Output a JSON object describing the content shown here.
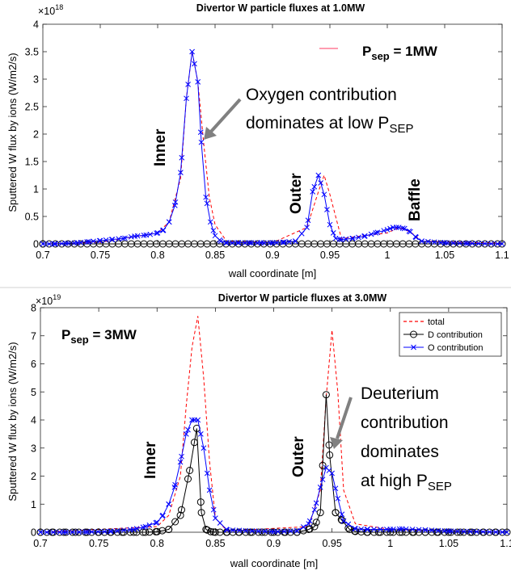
{
  "chart_data": [
    {
      "type": "line",
      "title": "Divertor W particle fluxes at 1.0MW",
      "xlabel": "wall coordinate [m]",
      "ylabel": "Sputtered W flux by ions (W/m2/s)",
      "y_multiplier": "×10",
      "y_multiplier_exp": "18",
      "xlim": [
        0.7,
        1.1
      ],
      "ylim": [
        0,
        4
      ],
      "xticks": [
        "0.7",
        "0.75",
        "0.8",
        "0.85",
        "0.9",
        "0.95",
        "1",
        "1.05",
        "1.1"
      ],
      "yticks": [
        "0",
        "0.5",
        "1",
        "1.5",
        "2",
        "2.5",
        "3",
        "3.5",
        "4"
      ],
      "grid": false,
      "legend": {
        "position": "top-right",
        "entries": [
          ""
        ]
      },
      "annotations": {
        "psep_main": "P",
        "psep_sub": "sep",
        "psep_rest": " = 1MW",
        "note_line1": "Oxygen contribution",
        "note_line2_main": "dominates at low P",
        "note_line2_sub": "SEP",
        "inner": "Inner",
        "outer": "Outer",
        "baffle": "Baffle"
      },
      "series": [
        {
          "color": "#ff0000",
          "style": "dashed",
          "x": [
            0.7,
            0.7,
            0.75,
            0.8,
            0.81,
            0.82,
            0.825,
            0.83,
            0.835,
            0.84,
            0.845,
            0.85,
            0.86,
            0.9,
            0.93,
            0.94,
            0.945,
            0.95,
            0.96,
            1.0,
            1.01,
            1.02,
            1.03,
            1.1
          ],
          "y": [
            0,
            0,
            0.03,
            0.2,
            0.4,
            1.2,
            2.65,
            3.5,
            2.95,
            1.85,
            0.85,
            0.35,
            0.05,
            0.02,
            0.3,
            0.95,
            1.25,
            0.9,
            0.1,
            0.2,
            0.3,
            0.22,
            0.05,
            0.01
          ]
        },
        {
          "color": "#000000",
          "style": "solid",
          "marker": "circle",
          "x": [
            0.7,
            1.1
          ],
          "y": [
            0,
            0
          ]
        },
        {
          "color": "#0000ff",
          "style": "solid",
          "marker": "x",
          "x": [
            0.7,
            0.71,
            0.72,
            0.73,
            0.74,
            0.75,
            0.76,
            0.77,
            0.78,
            0.79,
            0.8,
            0.805,
            0.81,
            0.815,
            0.82,
            0.825,
            0.83,
            0.835,
            0.838,
            0.842,
            0.846,
            0.85,
            0.855,
            0.86,
            0.87,
            0.88,
            0.89,
            0.9,
            0.91,
            0.92,
            0.93,
            0.935,
            0.94,
            0.945,
            0.95,
            0.955,
            0.96,
            0.97,
            0.98,
            0.99,
            1.0,
            1.005,
            1.01,
            1.015,
            1.02,
            1.025,
            1.03,
            1.05,
            1.07,
            1.1
          ],
          "y": [
            0,
            0,
            0.01,
            0.02,
            0.04,
            0.06,
            0.08,
            0.1,
            0.14,
            0.16,
            0.2,
            0.25,
            0.4,
            0.7,
            1.3,
            2.65,
            3.5,
            2.95,
            1.85,
            0.85,
            0.4,
            0.15,
            0.05,
            0.02,
            0.02,
            0.02,
            0.02,
            0.02,
            0.03,
            0.05,
            0.3,
            0.95,
            1.25,
            0.9,
            0.35,
            0.1,
            0.08,
            0.1,
            0.14,
            0.2,
            0.26,
            0.3,
            0.3,
            0.28,
            0.22,
            0.12,
            0.05,
            0.02,
            0.01,
            0
          ]
        }
      ]
    },
    {
      "type": "line",
      "title": "Divertor W particle fluxes at 3.0MW",
      "xlabel": "wall coordinate [m]",
      "ylabel": "Sputtered W flux by ions (W/m2/s)",
      "y_multiplier": "×10",
      "y_multiplier_exp": "19",
      "xlim": [
        0.7,
        1.1
      ],
      "ylim": [
        0,
        8
      ],
      "xticks": [
        "0.7",
        "0.75",
        "0.8",
        "0.85",
        "0.9",
        "0.95",
        "1",
        "1.05",
        "1.1"
      ],
      "yticks": [
        "0",
        "1",
        "2",
        "3",
        "4",
        "5",
        "6",
        "7",
        "8"
      ],
      "grid": false,
      "legend": {
        "position": "top-right",
        "entries": [
          "total",
          "D contribution",
          "O contribution"
        ]
      },
      "annotations": {
        "psep_main": "P",
        "psep_sub": "sep",
        "psep_rest": " = 3MW",
        "note_line1": "Deuterium",
        "note_line2": "contribution",
        "note_line3": "dominates",
        "note_line4_main": "at high P",
        "note_line4_sub": "SEP",
        "inner": "Inner",
        "outer": "Outer"
      },
      "series": [
        {
          "name": "total",
          "color": "#ff0000",
          "style": "dashed",
          "x": [
            0.7,
            0.8,
            0.81,
            0.82,
            0.825,
            0.83,
            0.835,
            0.84,
            0.845,
            0.85,
            0.86,
            0.93,
            0.94,
            0.945,
            0.95,
            0.955,
            0.96,
            0.97,
            1.0,
            1.1
          ],
          "y": [
            0,
            0.2,
            0.6,
            2.0,
            4.5,
            6.6,
            7.7,
            5.5,
            2.5,
            0.5,
            0.05,
            0.2,
            1.5,
            4.8,
            7.2,
            5.0,
            1.5,
            0.3,
            0.1,
            0
          ]
        },
        {
          "name": "D contribution",
          "color": "#000000",
          "style": "solid",
          "marker": "circle",
          "x": [
            0.7,
            0.71,
            0.72,
            0.73,
            0.74,
            0.75,
            0.76,
            0.77,
            0.78,
            0.79,
            0.8,
            0.81,
            0.82,
            0.828,
            0.834,
            0.838,
            0.842,
            0.846,
            0.85,
            0.86,
            0.87,
            0.88,
            0.89,
            0.9,
            0.91,
            0.92,
            0.93,
            0.935,
            0.94,
            0.945,
            0.948,
            0.953,
            0.958,
            0.965,
            0.97,
            0.98,
            0.99,
            1.0,
            1.01,
            1.02,
            1.03,
            1.04,
            1.05,
            1.06,
            1.07,
            1.08,
            1.09,
            1.1
          ],
          "y": [
            0,
            0,
            0,
            0,
            0,
            0,
            0,
            0,
            0,
            0,
            0.02,
            0.1,
            0.6,
            2.2,
            3.7,
            0.7,
            0.1,
            0.02,
            0,
            0,
            0,
            0,
            0,
            0,
            0,
            0,
            0.1,
            0.2,
            0.7,
            4.9,
            2.75,
            0.7,
            0.45,
            0.1,
            0.03,
            0,
            0,
            0,
            0,
            0,
            0,
            0,
            0,
            0,
            0,
            0,
            0,
            0
          ]
        },
        {
          "name": "O contribution",
          "color": "#0000ff",
          "style": "solid",
          "marker": "x",
          "x": [
            0.7,
            0.72,
            0.74,
            0.76,
            0.78,
            0.79,
            0.8,
            0.805,
            0.81,
            0.815,
            0.82,
            0.825,
            0.83,
            0.835,
            0.84,
            0.845,
            0.85,
            0.86,
            0.9,
            0.92,
            0.93,
            0.935,
            0.94,
            0.945,
            0.95,
            0.955,
            0.96,
            0.97,
            0.98,
            1.0,
            1.01,
            1.03,
            1.05,
            1.1
          ],
          "y": [
            0,
            0,
            0.01,
            0.03,
            0.1,
            0.2,
            0.35,
            0.6,
            1.0,
            1.6,
            2.5,
            3.5,
            4.0,
            4.0,
            3.0,
            1.5,
            0.5,
            0.08,
            0.02,
            0.05,
            0.3,
            0.8,
            1.6,
            2.3,
            2.1,
            1.2,
            0.4,
            0.12,
            0.1,
            0.1,
            0.12,
            0.08,
            0.04,
            0
          ]
        }
      ]
    }
  ]
}
